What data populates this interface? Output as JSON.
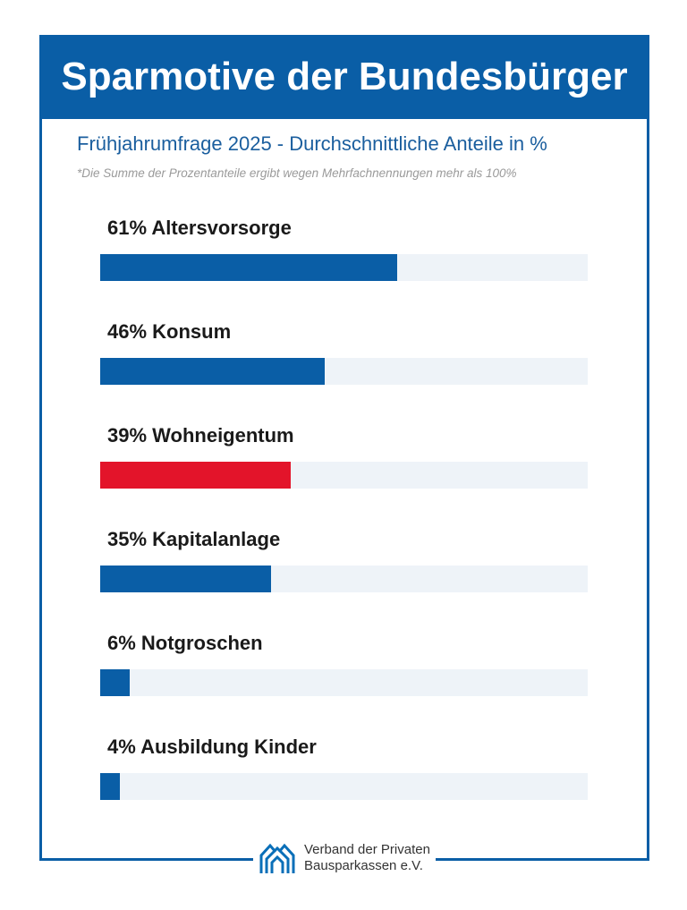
{
  "chart_data": {
    "type": "bar",
    "orientation": "horizontal",
    "title": "Sparmotive der Bundesbürger",
    "subtitle": "Frühjahrumfrage 2025 - Durchschnittliche Anteile in %",
    "note": "*Die Summe der Prozentanteile ergibt wegen Mehrfachnennungen mehr als 100%",
    "xlim": [
      0,
      100
    ],
    "categories": [
      "Altersvorsorge",
      "Konsum",
      "Wohneigentum",
      "Kapitalanlage",
      "Notgroschen",
      "Ausbildung Kinder"
    ],
    "values": [
      61,
      46,
      39,
      35,
      6,
      4
    ],
    "labels": [
      "61% Altersvorsorge",
      "46% Konsum",
      "39% Wohneigentum",
      "35% Kapitalanlage",
      "6% Notgroschen",
      "4% Ausbildung Kinder"
    ],
    "colors": [
      "#0a5ea6",
      "#0a5ea6",
      "#e3142a",
      "#0a5ea6",
      "#0a5ea6",
      "#0a5ea6"
    ],
    "track_color": "#eef3f8"
  },
  "footer": {
    "logo_line1": "Verband der Privaten",
    "logo_line2": "Bausparkassen e.V."
  }
}
